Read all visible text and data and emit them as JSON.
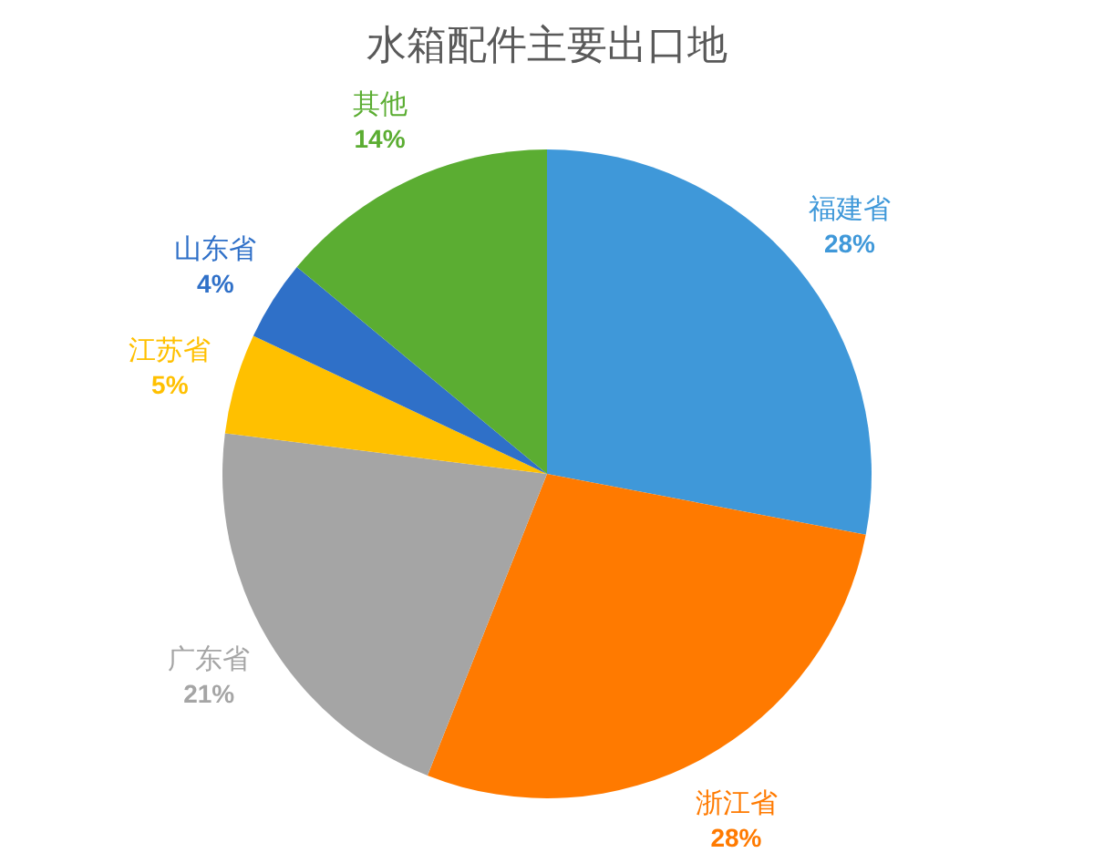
{
  "chart_data": {
    "type": "pie",
    "title": "水箱配件主要出口地",
    "categories": [
      "福建省",
      "浙江省",
      "广东省",
      "江苏省",
      "山东省",
      "其他"
    ],
    "values": [
      28,
      28,
      21,
      5,
      4,
      14
    ],
    "value_labels": [
      "28%",
      "28%",
      "21%",
      "5%",
      "4%",
      "14%"
    ],
    "colors": [
      "#3f98d9",
      "#ff7a00",
      "#a5a5a5",
      "#ffc000",
      "#2f70c8",
      "#5bad32"
    ]
  }
}
